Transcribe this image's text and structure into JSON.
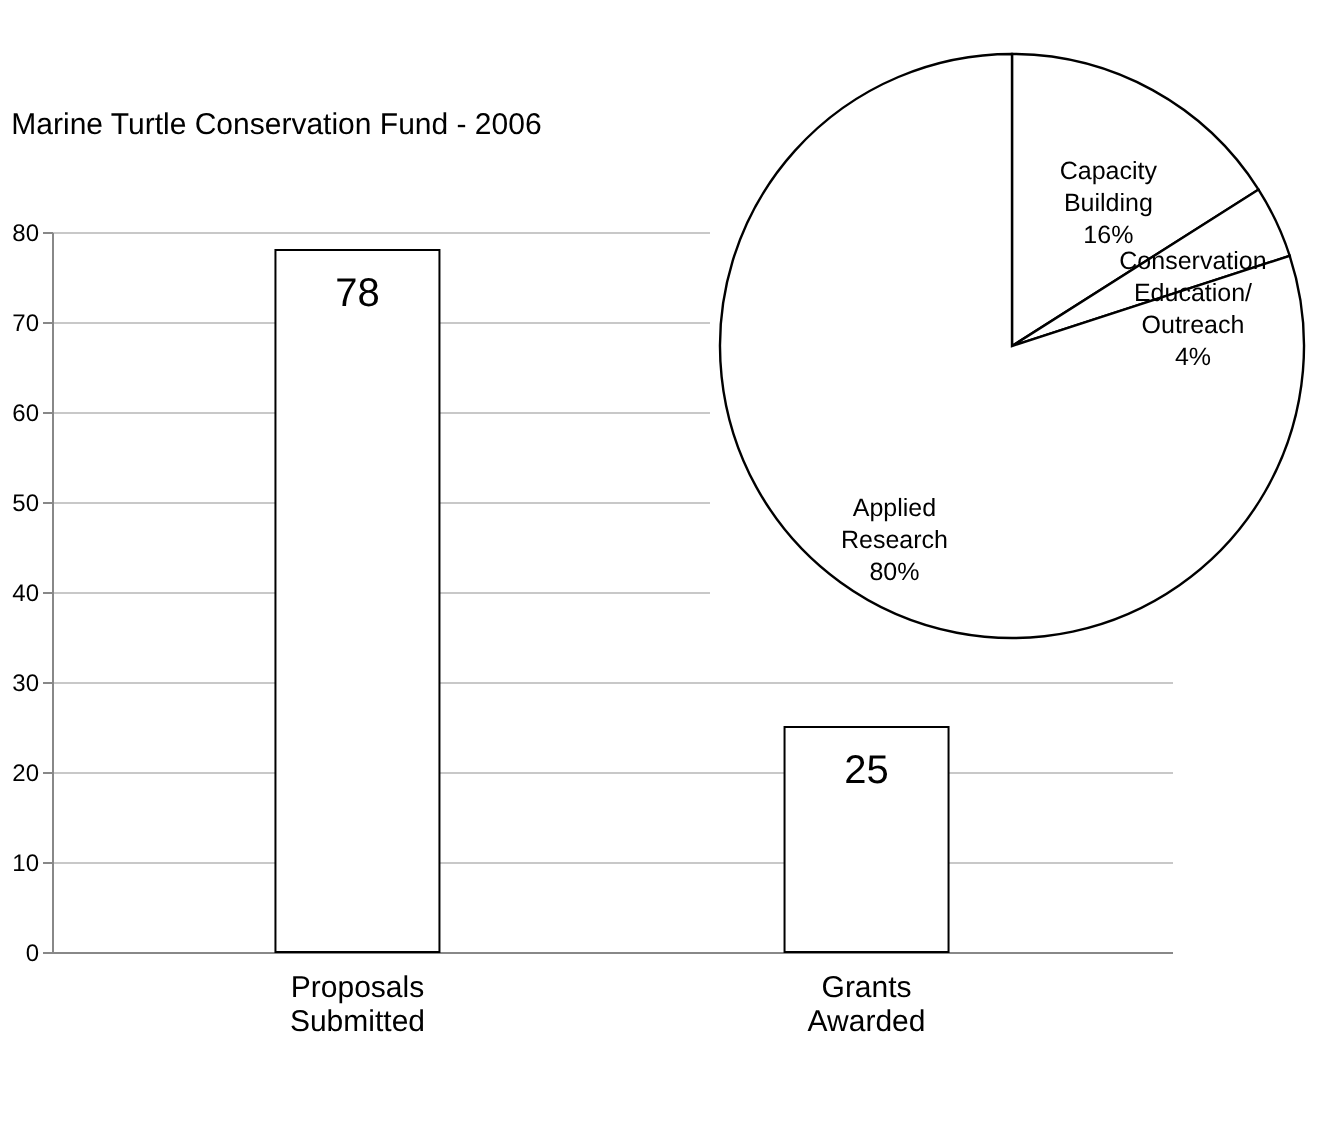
{
  "chart_data": [
    {
      "type": "bar",
      "title": "Marine Turtle Conservation Fund - 2006",
      "categories": [
        "Proposals Submitted",
        "Grants Awarded"
      ],
      "values": [
        78,
        25
      ],
      "color": "#ffffff",
      "ylim": [
        0,
        80
      ],
      "yticks": [
        0,
        10,
        20,
        30,
        40,
        50,
        60,
        70,
        80
      ],
      "grid": "y",
      "data_labels": true
    },
    {
      "type": "pie",
      "categories": [
        "Capacity Building",
        "Conservation Education/ Outreach",
        "Applied Research"
      ],
      "values": [
        16,
        4,
        80
      ],
      "colors": [
        "#ffffff",
        "#ffffff",
        "#ffffff"
      ],
      "value_labels": [
        "16%",
        "4%",
        "80%"
      ]
    }
  ]
}
